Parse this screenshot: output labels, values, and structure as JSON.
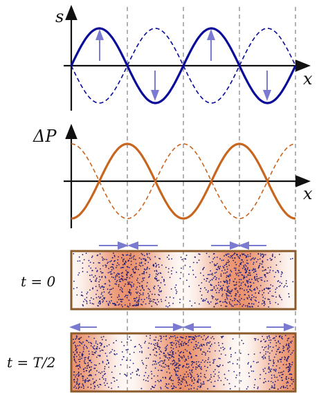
{
  "displacement_plot": {
    "y_axis_label": "s",
    "x_axis_label": "x"
  },
  "pressure_plot": {
    "y_axis_label": "ΔP",
    "x_axis_label": "x"
  },
  "tube_rows": [
    {
      "label": "t = 0"
    },
    {
      "label": "t = T/2"
    }
  ],
  "colors": {
    "displacement": "#0a0a9a",
    "pressure": "#c8651e",
    "arrow": "#7a7ad0",
    "tube_frame": "#8b5a2b",
    "dots": "#1a1a7a",
    "compression": "#e8845a"
  }
}
